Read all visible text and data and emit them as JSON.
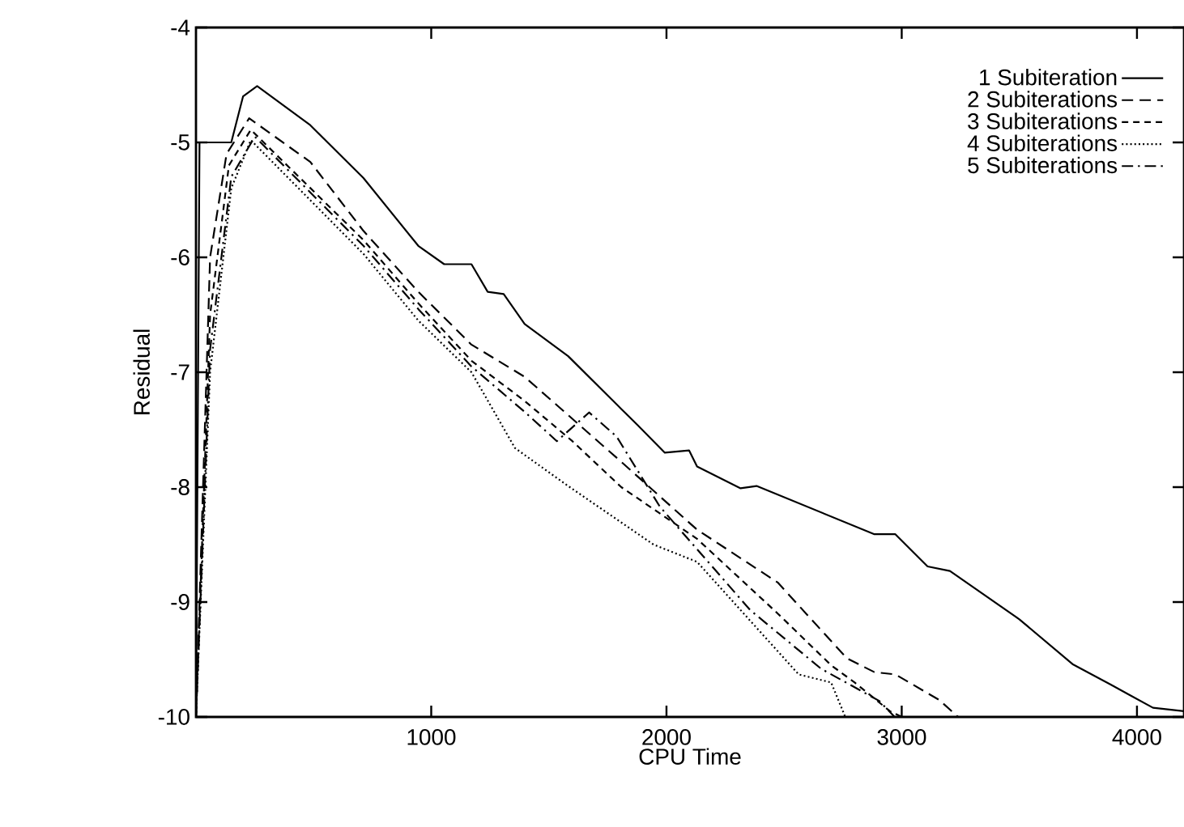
{
  "chart_data": {
    "type": "line",
    "xlabel": "CPU Time",
    "ylabel": "Residual",
    "xlim": [
      0,
      4200
    ],
    "ylim": [
      -10,
      -4
    ],
    "xticks": [
      1000,
      2000,
      3000,
      4000
    ],
    "yticks": [
      -10,
      -9,
      -8,
      -7,
      -6,
      -5,
      -4
    ],
    "grid": false,
    "legend": "top right",
    "series": [
      {
        "name": "1 Subiteration",
        "color": "#000000",
        "line_style": "solid",
        "x": [
          0,
          15,
          150,
          200,
          260,
          486,
          712,
          945,
          1055,
          1171,
          1240,
          1308,
          1397,
          1582,
          1808,
          1877,
          1993,
          2096,
          2130,
          2315,
          2383,
          2884,
          2973,
          3110,
          3205,
          3500,
          3726,
          3890,
          3979,
          4068,
          4200
        ],
        "values": [
          -10,
          -5,
          -5,
          -4.6,
          -4.51,
          -4.85,
          -5.31,
          -5.9,
          -6.06,
          -6.06,
          -6.3,
          -6.32,
          -6.58,
          -6.86,
          -7.32,
          -7.46,
          -7.7,
          -7.68,
          -7.82,
          -8.01,
          -7.99,
          -8.41,
          -8.41,
          -8.69,
          -8.73,
          -9.15,
          -9.54,
          -9.72,
          -9.82,
          -9.92,
          -9.95
        ]
      },
      {
        "name": "2 Subiterations",
        "color": "#000000",
        "line_style": "dashed",
        "x": [
          0,
          60,
          130,
          226,
          486,
          712,
          945,
          1171,
          1397,
          1808,
          2130,
          2473,
          2767,
          2884,
          2973,
          3158,
          3240
        ],
        "values": [
          -10,
          -6,
          -5.1,
          -4.79,
          -5.17,
          -5.77,
          -6.3,
          -6.76,
          -7.04,
          -7.78,
          -8.37,
          -8.83,
          -9.49,
          -9.61,
          -9.63,
          -9.85,
          -10
        ]
      },
      {
        "name": "3 Subiterations",
        "color": "#000000",
        "line_style": "densely dashed",
        "x": [
          0,
          60,
          140,
          233,
          712,
          945,
          1171,
          1397,
          1600,
          1808,
          2130,
          2473,
          2700,
          2800,
          2950,
          3000
        ],
        "values": [
          -10,
          -6.5,
          -5.2,
          -4.89,
          -5.85,
          -6.4,
          -6.9,
          -7.25,
          -7.6,
          -8.0,
          -8.45,
          -9.1,
          -9.55,
          -9.7,
          -9.95,
          -10
        ]
      },
      {
        "name": "4 Subiterations",
        "color": "#000000",
        "line_style": "dotted",
        "x": [
          0,
          60,
          150,
          233,
          712,
          945,
          1171,
          1356,
          1582,
          1945,
          2130,
          2562,
          2700,
          2760
        ],
        "values": [
          -10,
          -7,
          -5.4,
          -4.98,
          -5.97,
          -6.55,
          -7.0,
          -7.66,
          -7.99,
          -8.5,
          -8.65,
          -9.63,
          -9.7,
          -10
        ]
      },
      {
        "name": "5 Subiterations",
        "color": "#000000",
        "line_style": "dashdot",
        "x": [
          0,
          60,
          150,
          250,
          712,
          945,
          1171,
          1400,
          1534,
          1671,
          1788,
          1972,
          2356,
          2657,
          2904,
          2970
        ],
        "values": [
          -10,
          -6.8,
          -5.3,
          -4.95,
          -5.9,
          -6.45,
          -6.95,
          -7.35,
          -7.6,
          -7.35,
          -7.56,
          -8.17,
          -9.07,
          -9.58,
          -9.86,
          -10
        ]
      }
    ]
  }
}
